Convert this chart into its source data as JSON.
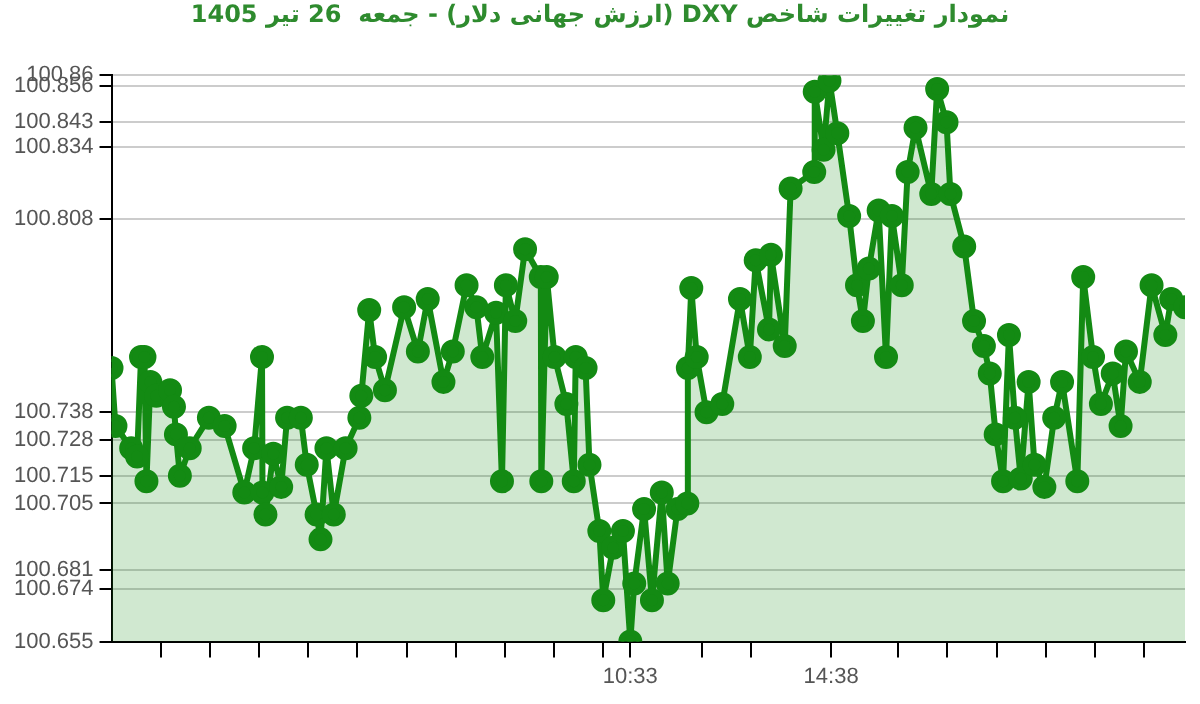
{
  "chart_data": {
    "type": "area",
    "title": "نمودار تغییرات شاخص DXY (ارزش جهانی دلار) - جمعه  26 تیر 1405",
    "x": [
      0,
      0.08,
      0.4,
      0.52,
      0.6,
      0.67,
      0.71,
      0.79,
      0.91,
      1.19,
      1.27,
      1.31,
      1.39,
      1.59,
      1.98,
      2.3,
      2.7,
      2.9,
      3.06,
      3.07,
      3.13,
      3.29,
      3.45,
      3.57,
      3.85,
      3.97,
      4.17,
      4.25,
      4.37,
      4.52,
      4.76,
      5.04,
      5.08,
      5.24,
      5.36,
      5.56,
      5.95,
      6.23,
      6.43,
      6.75,
      6.94,
      7.22,
      7.42,
      7.54,
      7.82,
      7.94,
      8.02,
      8.21,
      8.41,
      8.73,
      8.74,
      8.85,
      9.01,
      9.25,
      9.4,
      9.44,
      9.64,
      9.72,
      9.92,
      10,
      10.2,
      10.4,
      10.55,
      10.63,
      10.83,
      10.99,
      11.19,
      11.31,
      11.51,
      11.71,
      11.72,
      11.79,
      11.9,
      12.1,
      12.42,
      12.78,
      12.98,
      13.1,
      13.37,
      13.41,
      13.69,
      13.81,
      14.29,
      14.3,
      14.48,
      14.6,
      14.76,
      15,
      15.16,
      15.28,
      15.4,
      15.6,
      15.75,
      15.87,
      16.07,
      16.19,
      16.35,
      16.67,
      16.79,
      16.98,
      17.06,
      17.34,
      17.54,
      17.74,
      17.86,
      17.98,
      18.13,
      18.25,
      18.37,
      18.49,
      18.65,
      18.77,
      18.97,
      19.17,
      19.33,
      19.64,
      19.76,
      19.96,
      20.12,
      20.36,
      20.52,
      20.63,
      20.91,
      21.15,
      21.43,
      21.55,
      21.83
    ],
    "series": [
      {
        "color": "#138a13",
        "values": [
          100.754,
          100.733,
          100.725,
          100.722,
          100.758,
          100.758,
          100.713,
          100.749,
          100.744,
          100.746,
          100.74,
          100.73,
          100.715,
          100.725,
          100.736,
          100.733,
          100.709,
          100.725,
          100.758,
          100.709,
          100.701,
          100.723,
          100.711,
          100.736,
          100.736,
          100.719,
          100.701,
          100.692,
          100.725,
          100.701,
          100.725,
          100.736,
          100.744,
          100.775,
          100.758,
          100.746,
          100.776,
          100.76,
          100.779,
          100.749,
          100.76,
          100.784,
          100.776,
          100.758,
          100.774,
          100.713,
          100.784,
          100.771,
          100.797,
          100.787,
          100.713,
          100.787,
          100.758,
          100.741,
          100.713,
          100.758,
          100.754,
          100.719,
          100.695,
          100.67,
          100.689,
          100.695,
          100.655,
          100.676,
          100.703,
          100.67,
          100.709,
          100.676,
          100.703,
          100.705,
          100.754,
          100.783,
          100.758,
          100.738,
          100.741,
          100.779,
          100.758,
          100.793,
          100.768,
          100.795,
          100.762,
          100.819,
          100.825,
          100.854,
          100.833,
          100.858,
          100.839,
          100.809,
          100.784,
          100.771,
          100.79,
          100.811,
          100.758,
          100.809,
          100.784,
          100.825,
          100.841,
          100.817,
          100.855,
          100.843,
          100.817,
          100.798,
          100.771,
          100.762,
          100.752,
          100.73,
          100.713,
          100.766,
          100.736,
          100.714,
          100.749,
          100.719,
          100.711,
          100.736,
          100.749,
          100.713,
          100.787,
          100.758,
          100.741,
          100.752,
          100.733,
          100.76,
          100.749,
          100.784,
          100.766,
          100.779,
          100.776
        ]
      }
    ],
    "xlim": [
      0,
      21.83
    ],
    "xticks": [
      {
        "value": 1,
        "label": null
      },
      {
        "value": 2,
        "label": null
      },
      {
        "value": 3,
        "label": null
      },
      {
        "value": 4,
        "label": null
      },
      {
        "value": 5,
        "label": null
      },
      {
        "value": 6,
        "label": null
      },
      {
        "value": 7,
        "label": null
      },
      {
        "value": 8,
        "label": null
      },
      {
        "value": 9,
        "label": null
      },
      {
        "value": 10,
        "label": null
      },
      {
        "value": 10.55,
        "label": "10:33"
      },
      {
        "value": 12,
        "label": null
      },
      {
        "value": 13,
        "label": null
      },
      {
        "value": 14.633,
        "label": "14:38"
      },
      {
        "value": 16,
        "label": null
      },
      {
        "value": 17,
        "label": null
      },
      {
        "value": 18,
        "label": null
      },
      {
        "value": 19,
        "label": null
      },
      {
        "value": 20,
        "label": null
      },
      {
        "value": 21,
        "label": null
      }
    ],
    "ylim": [
      100.655,
      100.86
    ],
    "yticks": [
      100.655,
      100.674,
      100.681,
      100.705,
      100.715,
      100.728,
      100.738,
      100.808,
      100.834,
      100.843,
      100.856,
      100.86
    ],
    "grid": "y",
    "marker": "circle",
    "legend": false
  }
}
